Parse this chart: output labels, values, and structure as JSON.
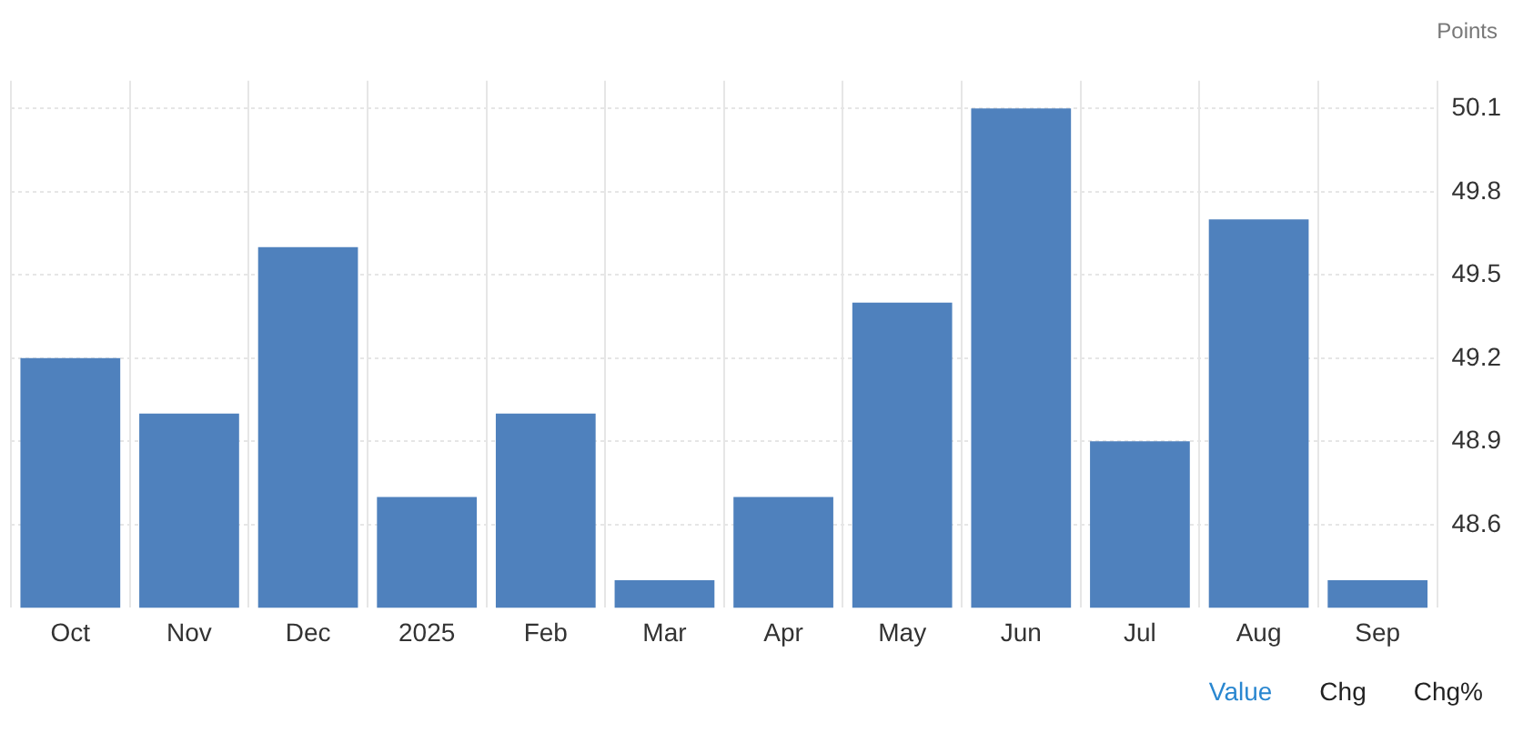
{
  "chart_data": {
    "type": "bar",
    "ylabel": "Points",
    "categories": [
      "Oct",
      "Nov",
      "Dec",
      "2025",
      "Feb",
      "Mar",
      "Apr",
      "May",
      "Jun",
      "Jul",
      "Aug",
      "Sep"
    ],
    "values": [
      49.2,
      49.0,
      49.6,
      48.7,
      49.0,
      48.4,
      48.7,
      49.4,
      50.1,
      48.9,
      49.7,
      48.4
    ],
    "color": "#4f81bd",
    "ylim": [
      48.3,
      50.2
    ],
    "yticks": [
      48.6,
      48.9,
      49.2,
      49.5,
      49.8,
      50.1
    ],
    "grid": true,
    "annotations": [
      "Value",
      "Chg",
      "Chg%"
    ]
  }
}
